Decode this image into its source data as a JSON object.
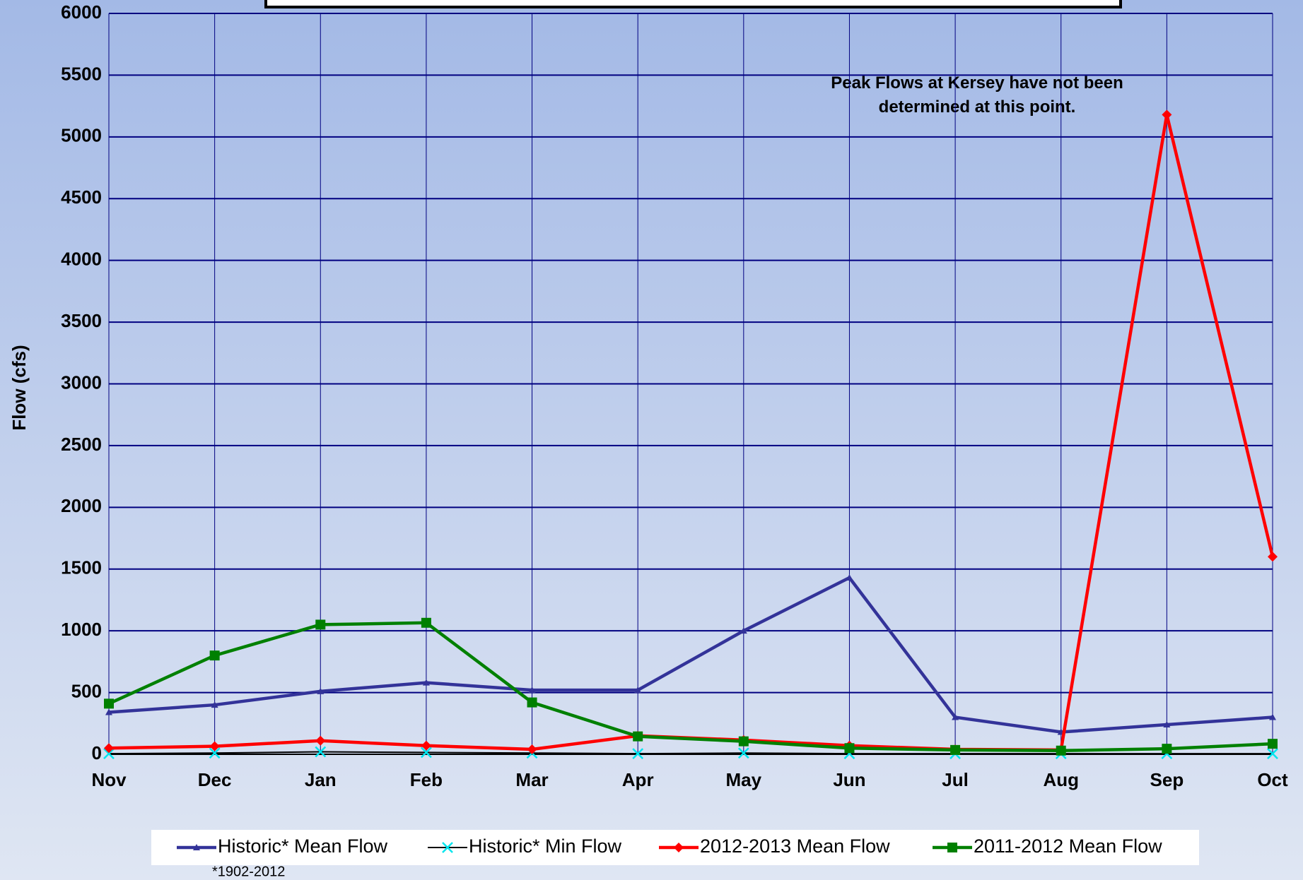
{
  "chart_data": {
    "type": "line",
    "annotation": "Peak Flows at Kersey have not been determined at this point.",
    "footnote": "*1902-2012",
    "y_label": "Flow (cfs)",
    "categories": [
      "Nov",
      "Dec",
      "Jan",
      "Feb",
      "Mar",
      "Apr",
      "May",
      "Jun",
      "Jul",
      "Aug",
      "Sep",
      "Oct"
    ],
    "series": [
      {
        "name": "Historic* Mean Flow",
        "color": "#333399",
        "marker": "triangle",
        "values": [
          340,
          400,
          510,
          580,
          520,
          520,
          1000,
          1430,
          300,
          180,
          240,
          300
        ]
      },
      {
        "name": "Historic* Min Flow",
        "color": "#000000",
        "marker_color": "#00e5ee",
        "marker": "x",
        "values": [
          5,
          10,
          20,
          15,
          10,
          5,
          10,
          5,
          5,
          5,
          5,
          5
        ]
      },
      {
        "name": "2012-2013 Mean Flow",
        "color": "#ff0000",
        "marker": "diamond",
        "values": [
          50,
          65,
          110,
          70,
          40,
          150,
          115,
          70,
          40,
          35,
          5180,
          1600
        ]
      },
      {
        "name": "2011-2012 Mean Flow",
        "color": "#008000",
        "marker": "square",
        "values": [
          410,
          800,
          1050,
          1065,
          420,
          145,
          105,
          50,
          35,
          30,
          45,
          85
        ]
      }
    ],
    "ylim": [
      0,
      6000
    ],
    "yticks": [
      0,
      500,
      1000,
      1500,
      2000,
      2500,
      3000,
      3500,
      4000,
      4500,
      5000,
      5500,
      6000
    ],
    "grid": true
  }
}
